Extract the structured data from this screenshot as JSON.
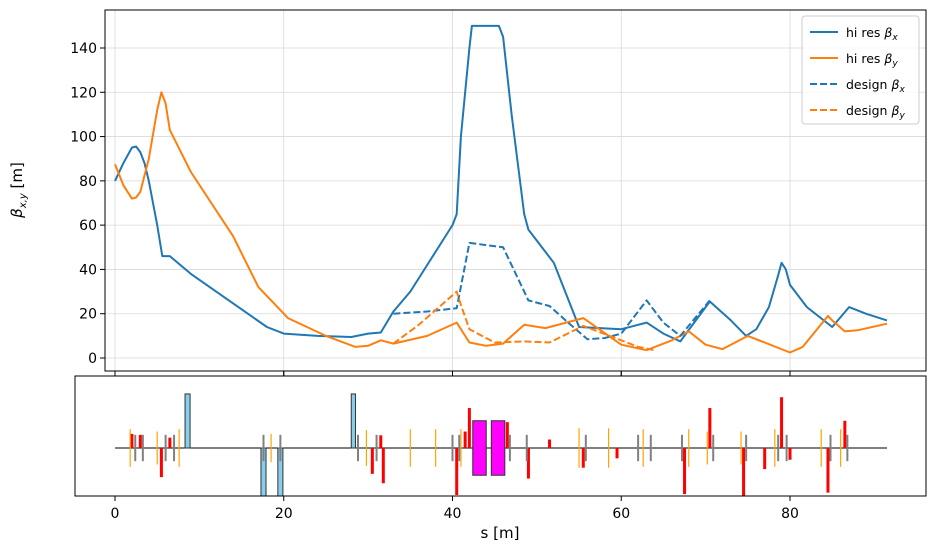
{
  "chart_data": [
    {
      "type": "line",
      "ylabel": "β_{x,y} [m]",
      "ylabel_main": "β",
      "ylabel_sub": "x,y",
      "ylabel_unit": " [m]",
      "xlim": [
        -4.6,
        96.4
      ],
      "ylim": [
        -5,
        157
      ],
      "xticks": [
        0,
        20,
        40,
        60,
        80
      ],
      "yticks": [
        0,
        20,
        40,
        60,
        80,
        100,
        120,
        140
      ],
      "grid": true,
      "legend_position": "top-right",
      "legend": [
        {
          "name": "hi res β_x",
          "text": "hi res ",
          "sym": "β",
          "sub": "x",
          "color": "#1f77b4",
          "dash": "solid"
        },
        {
          "name": "hi res β_y",
          "text": "hi res ",
          "sym": "β",
          "sub": "y",
          "color": "#ff7f0e",
          "dash": "solid"
        },
        {
          "name": "design β_x",
          "text": "design ",
          "sym": "β",
          "sub": "x",
          "color": "#1f77b4",
          "dash": "dashed"
        },
        {
          "name": "design β_y",
          "text": "design ",
          "sym": "β",
          "sub": "y",
          "color": "#ff7f0e",
          "dash": "dashed"
        }
      ],
      "series": [
        {
          "name": "hi res β_x",
          "color": "#1f77b4",
          "dash": "solid",
          "x": [
            0,
            1,
            2,
            2.5,
            3,
            3.5,
            4,
            4.5,
            5,
            5.6,
            6.5,
            9,
            15,
            18,
            20,
            24,
            28,
            30,
            31.5,
            33,
            35,
            37,
            40,
            40.5,
            41,
            42,
            42.3,
            45.5,
            46,
            47,
            48,
            48.5,
            49,
            52,
            55,
            60,
            63,
            65,
            67,
            70.5,
            73,
            74.8,
            76,
            77.5,
            78.5,
            79,
            79.5,
            80,
            82,
            85,
            87,
            89,
            91.5
          ],
          "y": [
            80,
            88,
            95,
            95.5,
            93,
            88,
            80,
            70,
            60,
            46,
            46,
            38,
            22,
            14,
            11,
            10,
            9.5,
            11,
            11.5,
            21,
            30,
            42,
            60,
            65,
            100,
            140,
            150,
            150,
            145,
            110,
            80,
            65,
            58,
            43,
            14,
            13,
            16,
            11,
            7.5,
            25.5,
            17,
            10,
            13,
            23,
            36,
            43,
            40,
            33,
            23,
            14,
            23,
            20,
            17
          ]
        },
        {
          "name": "hi res β_y",
          "color": "#ff7f0e",
          "dash": "solid",
          "x": [
            0,
            1,
            2,
            2.5,
            3,
            4,
            5,
            5.5,
            6,
            6.5,
            9,
            14,
            17,
            20.5,
            25,
            28.5,
            30,
            31.5,
            33,
            37,
            40.5,
            42,
            44,
            46,
            48.5,
            51,
            55.5,
            60,
            63,
            66,
            68,
            70,
            72,
            75,
            80,
            81.5,
            84.5,
            85,
            86.5,
            88,
            91.5
          ],
          "y": [
            87.5,
            78,
            72,
            72.5,
            75,
            90,
            112,
            120,
            115,
            103,
            84,
            55,
            32,
            18,
            10,
            5,
            5.5,
            8,
            6.5,
            10,
            16,
            7,
            5.5,
            6.5,
            15,
            13.5,
            18,
            6,
            3.5,
            8,
            12,
            6,
            4,
            10,
            2.5,
            5,
            19,
            17,
            12,
            12.5,
            15.5
          ]
        },
        {
          "name": "design β_x",
          "color": "#1f77b4",
          "dash": "dashed",
          "x": [
            33,
            35,
            37,
            40.5,
            42,
            46,
            49,
            51.5,
            54,
            56,
            58,
            60,
            63,
            65,
            67,
            70.5
          ],
          "y": [
            20,
            20.5,
            21,
            22.5,
            52,
            50,
            26,
            23.5,
            15,
            8.5,
            9,
            11,
            26,
            16,
            10,
            26
          ]
        },
        {
          "name": "design β_y",
          "color": "#ff7f0e",
          "dash": "dashed",
          "x": [
            33,
            36,
            40.5,
            41,
            42,
            45,
            48.5,
            51.5,
            55.5,
            60,
            62,
            64
          ],
          "y": [
            6.5,
            15,
            30,
            24,
            13,
            7,
            7.5,
            7,
            14.5,
            8,
            5,
            3.5
          ]
        }
      ]
    },
    {
      "type": "lattice-layout",
      "xlabel": "s [m]",
      "xlim": [
        -4.6,
        96.4
      ],
      "ylim": [
        -1.2,
        1.35
      ],
      "xticks": [
        0,
        20,
        40,
        60,
        80
      ],
      "beamline": [
        0,
        91.5
      ],
      "elements": [
        {
          "kind": "dipole",
          "s0": 8.3,
          "s1": 8.9,
          "strength": 1.15
        },
        {
          "kind": "dipole",
          "s0": 17.3,
          "s1": 17.9,
          "strength": -1.15
        },
        {
          "kind": "dipole",
          "s0": 19.3,
          "s1": 19.9,
          "strength": -1.15
        },
        {
          "kind": "dipole",
          "s0": 28.0,
          "s1": 28.5,
          "strength": 1.15
        },
        {
          "kind": "solenoid",
          "s0": 42.4,
          "s1": 44.0,
          "strength": 0.58
        },
        {
          "kind": "solenoid",
          "s0": 44.6,
          "s1": 46.2,
          "strength": 0.58
        },
        {
          "kind": "quad",
          "s": 2.0,
          "strength": 0.3
        },
        {
          "kind": "quad",
          "s": 3.0,
          "strength": 0.28
        },
        {
          "kind": "quad",
          "s": 5.5,
          "strength": -0.62
        },
        {
          "kind": "quad",
          "s": 6.5,
          "strength": 0.22
        },
        {
          "kind": "quad",
          "s": 30.5,
          "strength": -0.55
        },
        {
          "kind": "quad",
          "s": 31.5,
          "strength": 0.27
        },
        {
          "kind": "quad",
          "s": 31.8,
          "strength": -0.75
        },
        {
          "kind": "quad",
          "s": 40.5,
          "strength": -1.0
        },
        {
          "kind": "quad",
          "s": 41.5,
          "strength": 0.35
        },
        {
          "kind": "quad",
          "s": 42.0,
          "strength": 0.85
        },
        {
          "kind": "quad",
          "s": 46.5,
          "strength": 0.55
        },
        {
          "kind": "quad",
          "s": 49.0,
          "strength": -0.65
        },
        {
          "kind": "quad",
          "s": 51.5,
          "strength": 0.18
        },
        {
          "kind": "quad",
          "s": 55.5,
          "strength": -0.42
        },
        {
          "kind": "quad",
          "s": 59.5,
          "strength": -0.22
        },
        {
          "kind": "quad",
          "s": 67.5,
          "strength": -0.98
        },
        {
          "kind": "quad",
          "s": 70.5,
          "strength": 0.85
        },
        {
          "kind": "quad",
          "s": 74.5,
          "strength": -1.02
        },
        {
          "kind": "quad",
          "s": 77.0,
          "strength": -0.45
        },
        {
          "kind": "quad",
          "s": 79.0,
          "strength": 1.08
        },
        {
          "kind": "quad",
          "s": 80.0,
          "strength": -0.25
        },
        {
          "kind": "quad",
          "s": 84.5,
          "strength": -0.95
        },
        {
          "kind": "quad",
          "s": 86.5,
          "strength": 0.58
        },
        {
          "kind": "sext",
          "s": 1.8,
          "strength": 0.4
        },
        {
          "kind": "sext",
          "s": 5.0,
          "strength": 0.35
        },
        {
          "kind": "sext",
          "s": 7.6,
          "strength": 0.4
        },
        {
          "kind": "sext",
          "s": 18.5,
          "strength": 0.3
        },
        {
          "kind": "sext",
          "s": 29.8,
          "strength": 0.38
        },
        {
          "kind": "sext",
          "s": 35.0,
          "strength": 0.4
        },
        {
          "kind": "sext",
          "s": 38.0,
          "strength": 0.4
        },
        {
          "kind": "sext",
          "s": 41.0,
          "strength": 0.4
        },
        {
          "kind": "sext",
          "s": 55.0,
          "strength": 0.42
        },
        {
          "kind": "sext",
          "s": 58.5,
          "strength": 0.42
        },
        {
          "kind": "sext",
          "s": 62.6,
          "strength": 0.4
        },
        {
          "kind": "sext",
          "s": 68.0,
          "strength": 0.4
        },
        {
          "kind": "sext",
          "s": 70.2,
          "strength": 0.35
        },
        {
          "kind": "sext",
          "s": 74.2,
          "strength": 0.35
        },
        {
          "kind": "sext",
          "s": 78.2,
          "strength": 0.4
        },
        {
          "kind": "sext",
          "s": 83.7,
          "strength": 0.4
        },
        {
          "kind": "sext",
          "s": 86.0,
          "strength": 0.4
        },
        {
          "kind": "corr",
          "s": 2.4,
          "strength": 0.28
        },
        {
          "kind": "corr",
          "s": 3.3,
          "strength": 0.28
        },
        {
          "kind": "corr",
          "s": 6.0,
          "strength": 0.28
        },
        {
          "kind": "corr",
          "s": 7.0,
          "strength": 0.28
        },
        {
          "kind": "corr",
          "s": 17.6,
          "strength": 0.28
        },
        {
          "kind": "corr",
          "s": 19.6,
          "strength": 0.28
        },
        {
          "kind": "corr",
          "s": 28.8,
          "strength": 0.28
        },
        {
          "kind": "corr",
          "s": 31.0,
          "strength": 0.28
        },
        {
          "kind": "corr",
          "s": 40.0,
          "strength": 0.28
        },
        {
          "kind": "corr",
          "s": 40.8,
          "strength": 0.28
        },
        {
          "kind": "corr",
          "s": 46.8,
          "strength": 0.28
        },
        {
          "kind": "corr",
          "s": 48.8,
          "strength": 0.28
        },
        {
          "kind": "corr",
          "s": 55.8,
          "strength": 0.28
        },
        {
          "kind": "corr",
          "s": 62.0,
          "strength": 0.28
        },
        {
          "kind": "corr",
          "s": 63.5,
          "strength": 0.28
        },
        {
          "kind": "corr",
          "s": 67.2,
          "strength": 0.28
        },
        {
          "kind": "corr",
          "s": 70.9,
          "strength": 0.28
        },
        {
          "kind": "corr",
          "s": 74.8,
          "strength": 0.28
        },
        {
          "kind": "corr",
          "s": 78.6,
          "strength": 0.28
        },
        {
          "kind": "corr",
          "s": 79.6,
          "strength": 0.28
        },
        {
          "kind": "corr",
          "s": 84.8,
          "strength": 0.28
        },
        {
          "kind": "corr",
          "s": 86.8,
          "strength": 0.28
        }
      ],
      "colors": {
        "dipole": "#87ceeb",
        "solenoid": "#ff00ff",
        "quad": "#ff0000",
        "sext": "#ffa500",
        "corr": "#808080",
        "edge": "#333333"
      }
    }
  ]
}
